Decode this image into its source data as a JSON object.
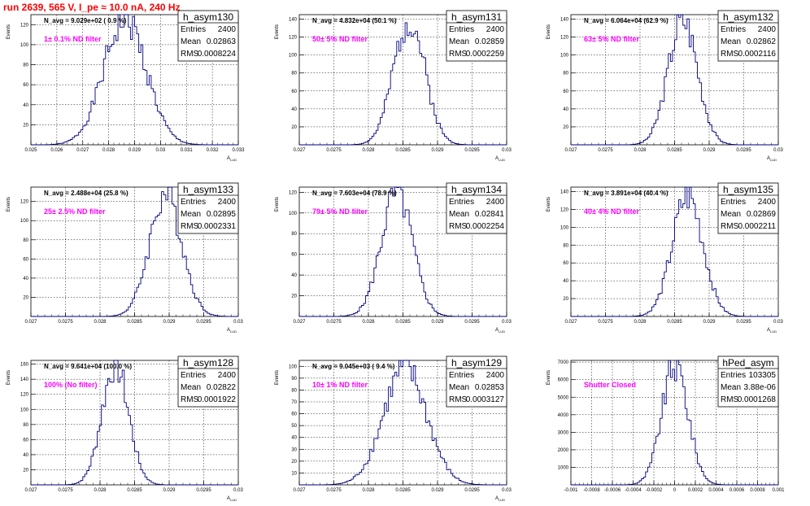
{
  "page_title": "run 2639,   565 V, I_pe ≈ 10.0 nA, 240 Hz",
  "stat_labels": {
    "entries": "Entries",
    "mean": "Mean",
    "rms": "RMS"
  },
  "chart_data": [
    {
      "type": "bar",
      "title": "h_asym130",
      "navg": "N_avg = 9.029e+02 ( 0.9 %)",
      "filter": "1± 0.1% ND filter",
      "ylabel": "Events",
      "xlabel": "A_{LUD}",
      "xlim": [
        0.025,
        0.033
      ],
      "ylim": [
        0,
        130
      ],
      "xticks": [
        "0.025",
        "0.026",
        "0.027",
        "0.028",
        "0.029",
        "0.03",
        "0.031",
        "0.032",
        "0.033"
      ],
      "yticks": [
        0,
        20,
        40,
        60,
        80,
        100,
        120
      ],
      "entries": "2400",
      "mean": "0.02863",
      "rms": "0.0008224",
      "mean_val": 0.02863,
      "rms_val": 0.0008224,
      "peak": 125,
      "seed": 1
    },
    {
      "type": "bar",
      "title": "h_asym131",
      "navg": "N_avg = 4.832e+04 (50.1 %)",
      "filter": "50± 5% ND filter",
      "ylabel": "Events",
      "xlabel": "A_{LUD}",
      "xlim": [
        0.027,
        0.03
      ],
      "ylim": [
        0,
        145
      ],
      "xticks": [
        "0.027",
        "0.0275",
        "0.028",
        "0.0285",
        "0.029",
        "0.0295",
        "0.03"
      ],
      "yticks": [
        0,
        20,
        40,
        60,
        80,
        100,
        120,
        140
      ],
      "entries": "2400",
      "mean": "0.02859",
      "rms": "0.0002259",
      "mean_val": 0.02859,
      "rms_val": 0.0002259,
      "peak": 140,
      "seed": 2
    },
    {
      "type": "bar",
      "title": "h_asym132",
      "navg": "N_avg = 6.064e+04 (62.9 %)",
      "filter": "63± 5% ND filter",
      "ylabel": "Events",
      "xlabel": "A_{LUD}",
      "xlim": [
        0.027,
        0.03
      ],
      "ylim": [
        0,
        145
      ],
      "xticks": [
        "0.027",
        "0.0275",
        "0.028",
        "0.0285",
        "0.029",
        "0.0295",
        "0.03"
      ],
      "yticks": [
        0,
        20,
        40,
        60,
        80,
        100,
        120,
        140
      ],
      "entries": "2400",
      "mean": "0.02862",
      "rms": "0.0002116",
      "mean_val": 0.02862,
      "rms_val": 0.0002116,
      "peak": 140,
      "seed": 3
    },
    {
      "type": "bar",
      "title": "h_asym133",
      "navg": "N_avg = 2.488e+04 (25.8 %)",
      "filter": "25± 2.5% ND filter",
      "ylabel": "Events",
      "xlabel": "A_{LUD}",
      "xlim": [
        0.027,
        0.03
      ],
      "ylim": [
        0,
        135
      ],
      "xticks": [
        "0.027",
        "0.0275",
        "0.028",
        "0.0285",
        "0.029",
        "0.0295",
        "0.03"
      ],
      "yticks": [
        0,
        20,
        40,
        60,
        80,
        100,
        120
      ],
      "entries": "2400",
      "mean": "0.02895",
      "rms": "0.0002331",
      "mean_val": 0.02895,
      "rms_val": 0.0002331,
      "peak": 128,
      "seed": 4
    },
    {
      "type": "bar",
      "title": "h_asym134",
      "navg": "N_avg = 7.603e+04 (78.9 %)",
      "filter": "79± 5% ND filter",
      "ylabel": "Events",
      "xlabel": "A_{LUD}",
      "xlim": [
        0.027,
        0.03
      ],
      "ylim": [
        0,
        125
      ],
      "xticks": [
        "0.027",
        "0.0275",
        "0.028",
        "0.0285",
        "0.029",
        "0.0295",
        "0.03"
      ],
      "yticks": [
        0,
        20,
        40,
        60,
        80,
        100,
        120
      ],
      "entries": "2400",
      "mean": "0.02841",
      "rms": "0.0002254",
      "mean_val": 0.02841,
      "rms_val": 0.0002254,
      "peak": 120,
      "seed": 5
    },
    {
      "type": "bar",
      "title": "h_asym135",
      "navg": "N_avg = 3.891e+04 (40.4 %)",
      "filter": "40± 4% ND filter",
      "ylabel": "Events",
      "xlabel": "A_{LUD}",
      "xlim": [
        0.027,
        0.03
      ],
      "ylim": [
        0,
        145
      ],
      "xticks": [
        "0.027",
        "0.0275",
        "0.028",
        "0.0285",
        "0.029",
        "0.0295",
        "0.03"
      ],
      "yticks": [
        0,
        20,
        40,
        60,
        80,
        100,
        120,
        140
      ],
      "entries": "2400",
      "mean": "0.02869",
      "rms": "0.0002211",
      "mean_val": 0.02869,
      "rms_val": 0.0002211,
      "peak": 135,
      "seed": 6
    },
    {
      "type": "bar",
      "title": "h_asym128",
      "navg": "N_avg = 9.641e+04 (100.0 %)",
      "filter": "100% (No filter)",
      "ylabel": "Events",
      "xlabel": "A_{LUD}",
      "xlim": [
        0.027,
        0.03
      ],
      "ylim": [
        0,
        165
      ],
      "xticks": [
        "0.027",
        "0.0275",
        "0.028",
        "0.0285",
        "0.029",
        "0.0295",
        "0.03"
      ],
      "yticks": [
        0,
        20,
        40,
        60,
        80,
        100,
        120,
        140,
        160
      ],
      "entries": "2400",
      "mean": "0.02822",
      "rms": "0.0001922",
      "mean_val": 0.02822,
      "rms_val": 0.0001922,
      "peak": 160,
      "seed": 7
    },
    {
      "type": "bar",
      "title": "h_asym129",
      "navg": "N_avg = 9.045e+03 ( 9.4 %)",
      "filter": "10± 1% ND filter",
      "ylabel": "Events",
      "xlabel": "A_{LUD}",
      "xlim": [
        0.027,
        0.03
      ],
      "ylim": [
        0,
        105
      ],
      "xticks": [
        "0.027",
        "0.0275",
        "0.028",
        "0.0285",
        "0.029",
        "0.0295",
        "0.03"
      ],
      "yticks": [
        0,
        10,
        20,
        30,
        40,
        50,
        60,
        70,
        80,
        90,
        100
      ],
      "entries": "2400",
      "mean": "0.02853",
      "rms": "0.0003127",
      "mean_val": 0.02853,
      "rms_val": 0.0003127,
      "peak": 98,
      "seed": 8
    },
    {
      "type": "bar",
      "title": "hPed_asym",
      "navg": "",
      "filter": "Shutter Closed",
      "ylabel": "Events",
      "xlabel": "",
      "xlim": [
        -0.001,
        0.001
      ],
      "ylim": [
        0,
        7100
      ],
      "xticks": [
        "-0.001",
        "-0.0008",
        "-0.0006",
        "-0.0004",
        "-0.0002",
        "0",
        "0.0002",
        "0.0004",
        "0.0006",
        "0.0008",
        "0.001"
      ],
      "yticks": [
        0,
        1000,
        2000,
        3000,
        4000,
        5000,
        6000,
        7000
      ],
      "entries": "103305",
      "mean": "3.88e-06",
      "rms": "0.0001268",
      "mean_val": 3.88e-06,
      "rms_val": 0.0001268,
      "peak": 6800,
      "seed": 9
    }
  ]
}
